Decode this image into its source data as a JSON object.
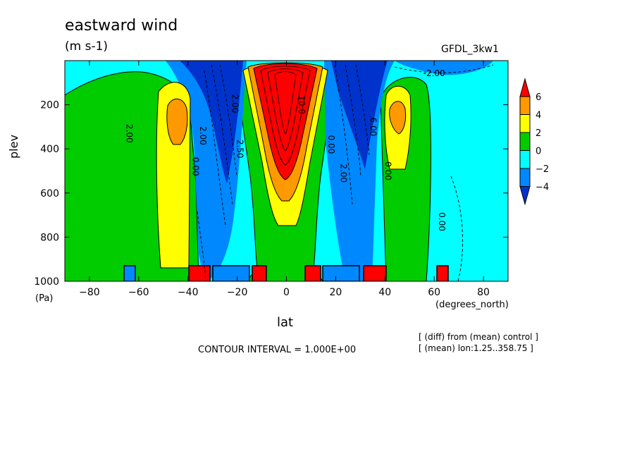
{
  "chart_data": {
    "type": "heatmap",
    "title": "eastward wind",
    "units": "(m s-1)",
    "dataset_label": "GFDL_3kw1",
    "xlabel": "lat",
    "x_units": "(degrees_north)",
    "ylabel": "plev",
    "y_units": "(Pa)",
    "xlim": [
      -90,
      90
    ],
    "ylim": [
      1000,
      0
    ],
    "x_ticks": [
      -80,
      -60,
      -40,
      -20,
      0,
      20,
      40,
      60,
      80
    ],
    "y_ticks": [
      200,
      400,
      600,
      800,
      1000
    ],
    "colorbar": {
      "levels": [
        6,
        4,
        2,
        0,
        -2,
        -4
      ],
      "colors": [
        "#ff0000",
        "#ff9900",
        "#ffff00",
        "#00cc00",
        "#00ffff",
        "#0088ff",
        "#0033cc"
      ]
    },
    "contour_labels": [
      {
        "text": "2.00",
        "x": -65,
        "y": 330
      },
      {
        "text": "0.00",
        "x": -38,
        "y": 480
      },
      {
        "text": "2.00",
        "x": -35,
        "y": 340
      },
      {
        "text": "2.50",
        "x": -20,
        "y": 400
      },
      {
        "text": "2.00",
        "x": -22,
        "y": 195
      },
      {
        "text": "10.0",
        "x": 5,
        "y": 200
      },
      {
        "text": "0.00",
        "x": 17,
        "y": 380
      },
      {
        "text": "2.00",
        "x": 22,
        "y": 510
      },
      {
        "text": "6.00",
        "x": 34,
        "y": 300
      },
      {
        "text": "0.00",
        "x": 40,
        "y": 500
      },
      {
        "text": "0.00",
        "x": 62,
        "y": 730
      },
      {
        "text": "-2.00",
        "x": 60,
        "y": 70
      }
    ],
    "contour_interval": "CONTOUR INTERVAL = 1.000E+00",
    "notes": [
      "[ (diff) from (mean) control ]",
      "[ (mean) lon:1.25..358.75 ]"
    ]
  }
}
